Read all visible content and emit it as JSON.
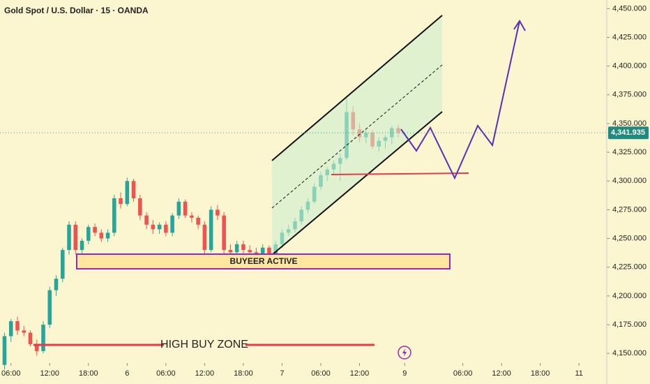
{
  "chart_data": {
    "type": "candlestick",
    "title": "Gold Spot / U.S. Dollar · 15 · OANDA",
    "x": [
      -1,
      0,
      1,
      2,
      3,
      4,
      5,
      6,
      7,
      8,
      9,
      10,
      11,
      12,
      13,
      14,
      15,
      16,
      17,
      18,
      19,
      20,
      21,
      22,
      23,
      24,
      25,
      26,
      27,
      28,
      29,
      30,
      31,
      32,
      33,
      34,
      35,
      36,
      37,
      38,
      39,
      40,
      41,
      42,
      43,
      44,
      45,
      46,
      47,
      48,
      49,
      50,
      51,
      52,
      53,
      54,
      55,
      56,
      57,
      58,
      59,
      60
    ],
    "open": [
      4140,
      4165,
      4178,
      4170,
      4168,
      4158,
      4152,
      4175,
      4205,
      4215,
      4240,
      4262,
      4240,
      4248,
      4260,
      4255,
      4250,
      4255,
      4285,
      4280,
      4300,
      4285,
      4270,
      4262,
      4258,
      4262,
      4255,
      4270,
      4282,
      4270,
      4268,
      4262,
      4240,
      4275,
      4270,
      4240,
      4238,
      4245,
      4240,
      4238,
      4235,
      4242,
      4232,
      4245,
      4255,
      4258,
      4265,
      4275,
      4282,
      4295,
      4305,
      4310,
      4315,
      4320,
      4360,
      4345,
      4338,
      4342,
      4330,
      4335,
      4338,
      4346
    ],
    "high": [
      4168,
      4180,
      4182,
      4174,
      4170,
      4162,
      4178,
      4208,
      4218,
      4242,
      4265,
      4265,
      4250,
      4262,
      4263,
      4258,
      4258,
      4288,
      4290,
      4303,
      4302,
      4288,
      4273,
      4266,
      4264,
      4265,
      4272,
      4285,
      4284,
      4273,
      4270,
      4265,
      4278,
      4279,
      4273,
      4245,
      4248,
      4248,
      4244,
      4242,
      4245,
      4244,
      4248,
      4258,
      4262,
      4268,
      4278,
      4285,
      4298,
      4308,
      4312,
      4318,
      4324,
      4372,
      4365,
      4350,
      4345,
      4344,
      4338,
      4340,
      4348,
      4349
    ],
    "low": [
      4136,
      4160,
      4166,
      4165,
      4156,
      4148,
      4150,
      4172,
      4200,
      4212,
      4236,
      4236,
      4236,
      4245,
      4252,
      4247,
      4247,
      4252,
      4276,
      4278,
      4282,
      4266,
      4258,
      4254,
      4254,
      4252,
      4252,
      4267,
      4268,
      4264,
      4258,
      4235,
      4238,
      4266,
      4236,
      4230,
      4234,
      4236,
      4234,
      4232,
      4230,
      4228,
      4230,
      4242,
      4252,
      4255,
      4262,
      4272,
      4280,
      4292,
      4300,
      4306,
      4300,
      4318,
      4340,
      4334,
      4333,
      4328,
      4326,
      4328,
      4332,
      4338
    ],
    "close": [
      4165,
      4178,
      4170,
      4168,
      4158,
      4152,
      4175,
      4205,
      4215,
      4240,
      4262,
      4240,
      4248,
      4260,
      4255,
      4250,
      4255,
      4285,
      4280,
      4300,
      4285,
      4270,
      4262,
      4258,
      4262,
      4255,
      4270,
      4282,
      4270,
      4268,
      4262,
      4240,
      4275,
      4270,
      4240,
      4238,
      4245,
      4240,
      4238,
      4235,
      4242,
      4232,
      4245,
      4255,
      4258,
      4265,
      4275,
      4282,
      4295,
      4305,
      4310,
      4315,
      4320,
      4360,
      4345,
      4338,
      4342,
      4330,
      4335,
      4338,
      4346,
      4342
    ],
    "up_color": "#26a69a",
    "down_color": "#ef5350",
    "xlim": [
      -1.7,
      92.3
    ],
    "xticks": [
      {
        "value": 0,
        "label": "06:00"
      },
      {
        "value": 6,
        "label": "12:00"
      },
      {
        "value": 12,
        "label": "18:00"
      },
      {
        "value": 18,
        "label": "6"
      },
      {
        "value": 24,
        "label": "06:00"
      },
      {
        "value": 30,
        "label": "12:00"
      },
      {
        "value": 36,
        "label": "18:00"
      },
      {
        "value": 42,
        "label": "7"
      },
      {
        "value": 48,
        "label": "06:00"
      },
      {
        "value": 54,
        "label": "12:00"
      },
      {
        "value": 61,
        "label": "9"
      },
      {
        "value": 70,
        "label": "06:00"
      },
      {
        "value": 76,
        "label": "12:00"
      },
      {
        "value": 82,
        "label": "18:00"
      },
      {
        "value": 88,
        "label": "11"
      }
    ],
    "ylim": [
      4141.6,
      4457.5
    ],
    "yticks": [
      {
        "value": 4150,
        "label": "4,150.000"
      },
      {
        "value": 4175,
        "label": "4,175.000"
      },
      {
        "value": 4200,
        "label": "4,200.000"
      },
      {
        "value": 4225,
        "label": "4,225.000"
      },
      {
        "value": 4250,
        "label": "4,250.000"
      },
      {
        "value": 4275,
        "label": "4,275.000"
      },
      {
        "value": 4300,
        "label": "4,300.000"
      },
      {
        "value": 4325,
        "label": "4,325.000"
      },
      {
        "value": 4350,
        "label": "4,350.000"
      },
      {
        "value": 4375,
        "label": "4,375.000"
      },
      {
        "value": 4400,
        "label": "4,400.000"
      },
      {
        "value": 4425,
        "label": "4,425.000"
      },
      {
        "value": 4450,
        "label": "4,450.000"
      }
    ],
    "last_price": {
      "value": 4341.935,
      "label": "4,341.935"
    },
    "annotations": [
      "BUYEER ACTIVE",
      "HIGH BUY ZONE"
    ]
  }
}
